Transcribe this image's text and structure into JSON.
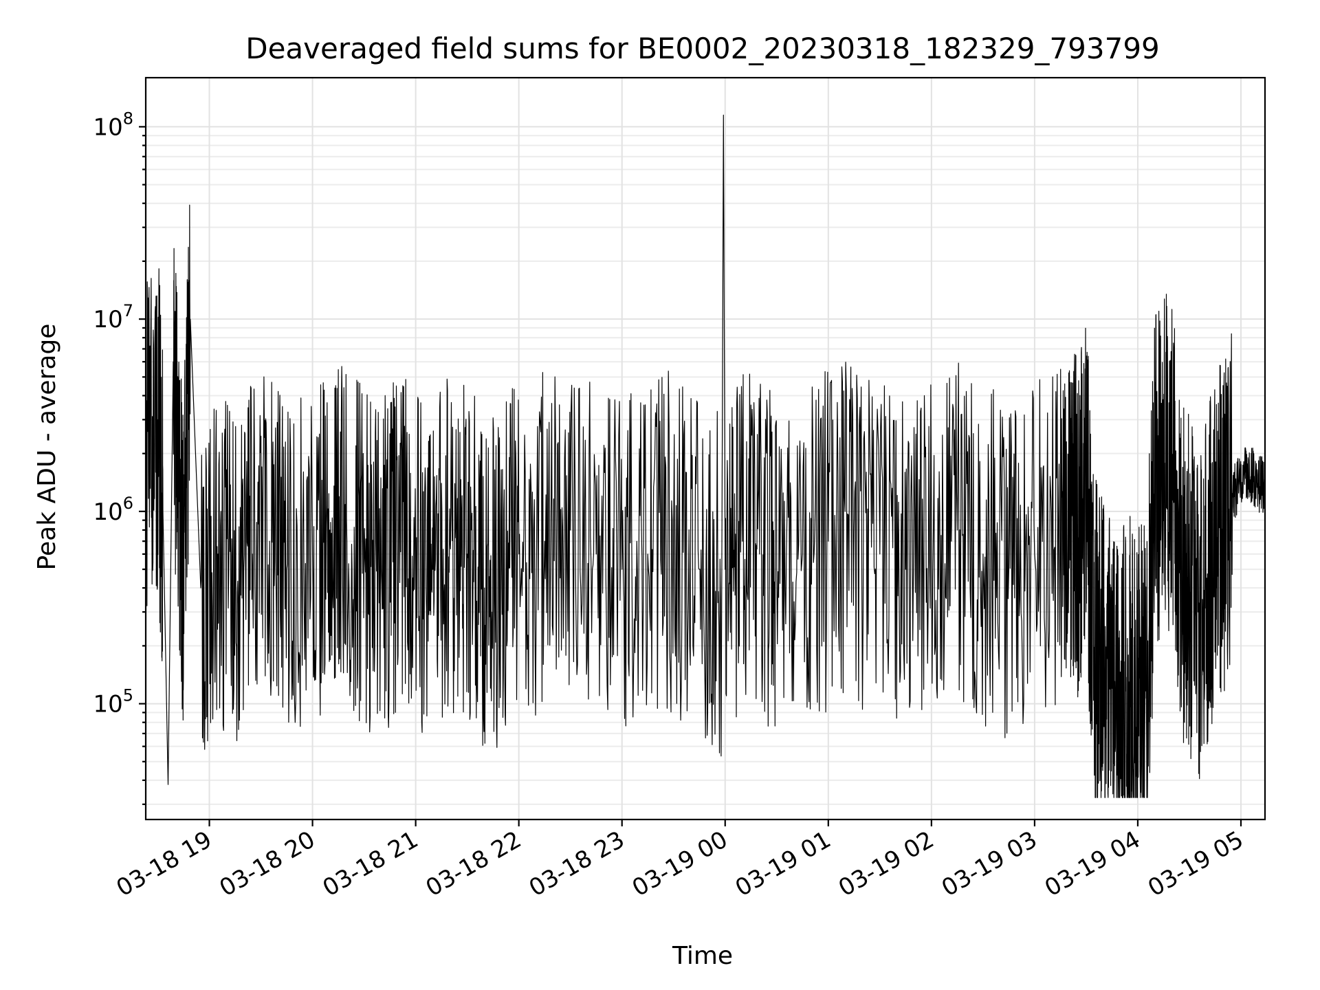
{
  "chart_data": {
    "type": "line",
    "title": "Deaveraged field sums for BE0002_20230318_182329_793799",
    "xlabel": "Time",
    "ylabel": "Peak ADU - average",
    "yscale": "log",
    "grid": true,
    "xlim": [
      "2023-03-18T18:23",
      "2023-03-19T05:14"
    ],
    "ylim": [
      25000,
      180000000
    ],
    "x_ticks": [
      {
        "label": "03-18 19",
        "t": "2023-03-18T19:00"
      },
      {
        "label": "03-18 20",
        "t": "2023-03-18T20:00"
      },
      {
        "label": "03-18 21",
        "t": "2023-03-18T21:00"
      },
      {
        "label": "03-18 22",
        "t": "2023-03-18T22:00"
      },
      {
        "label": "03-18 23",
        "t": "2023-03-18T23:00"
      },
      {
        "label": "03-19 00",
        "t": "2023-03-19T00:00"
      },
      {
        "label": "03-19 01",
        "t": "2023-03-19T01:00"
      },
      {
        "label": "03-19 02",
        "t": "2023-03-19T02:00"
      },
      {
        "label": "03-19 03",
        "t": "2023-03-19T03:00"
      },
      {
        "label": "03-19 04",
        "t": "2023-03-19T04:00"
      },
      {
        "label": "03-19 05",
        "t": "2023-03-19T05:00"
      }
    ],
    "y_ticks": [
      {
        "base": "10",
        "exp": "5",
        "value": 100000
      },
      {
        "base": "10",
        "exp": "6",
        "value": 1000000
      },
      {
        "base": "10",
        "exp": "7",
        "value": 10000000
      },
      {
        "base": "10",
        "exp": "8",
        "value": 100000000
      }
    ],
    "series_color": "#000000",
    "series": [
      {
        "x": [
          "2023-03-18T18:23",
          "2023-03-18T18:30",
          "2023-03-18T18:33",
          "2023-03-18T18:36",
          "2023-03-18T18:39",
          "2023-03-18T18:42",
          "2023-03-18T18:45",
          "2023-03-18T18:49",
          "2023-03-18T18:55",
          "2023-03-18T19:05",
          "2023-03-18T19:15",
          "2023-03-18T19:25",
          "2023-03-18T19:35",
          "2023-03-18T19:45",
          "2023-03-18T20:00",
          "2023-03-18T20:10",
          "2023-03-18T20:20",
          "2023-03-18T20:30",
          "2023-03-18T20:40",
          "2023-03-18T20:50",
          "2023-03-18T21:00",
          "2023-03-18T21:10",
          "2023-03-18T21:20",
          "2023-03-18T21:30",
          "2023-03-18T21:40",
          "2023-03-18T21:50",
          "2023-03-18T22:00",
          "2023-03-18T22:15",
          "2023-03-18T22:30",
          "2023-03-18T22:45",
          "2023-03-18T23:00",
          "2023-03-18T23:15",
          "2023-03-18T23:30",
          "2023-03-18T23:45",
          "2023-03-18T23:58",
          "2023-03-18T23:59",
          "2023-03-19T00:00",
          "2023-03-19T00:10",
          "2023-03-19T00:20",
          "2023-03-19T00:30",
          "2023-03-19T00:45",
          "2023-03-19T01:00",
          "2023-03-19T01:15",
          "2023-03-19T01:30",
          "2023-03-19T01:45",
          "2023-03-19T02:00",
          "2023-03-19T02:15",
          "2023-03-19T02:30",
          "2023-03-19T02:45",
          "2023-03-19T03:00",
          "2023-03-19T03:15",
          "2023-03-19T03:20",
          "2023-03-19T03:25",
          "2023-03-19T03:30",
          "2023-03-19T03:35",
          "2023-03-19T03:40",
          "2023-03-19T03:45",
          "2023-03-19T03:50",
          "2023-03-19T03:55",
          "2023-03-19T04:00",
          "2023-03-19T04:05",
          "2023-03-19T04:10",
          "2023-03-19T04:15",
          "2023-03-19T04:20",
          "2023-03-19T04:25",
          "2023-03-19T04:30",
          "2023-03-19T04:35",
          "2023-03-19T04:40",
          "2023-03-19T04:45",
          "2023-03-19T04:50",
          "2023-03-19T04:55",
          "2023-03-19T05:00",
          "2023-03-19T05:05",
          "2023-03-19T05:10",
          "2023-03-19T05:14"
        ],
        "y": [
          2000000,
          3000000,
          1000000,
          38000,
          6000000,
          1500000,
          500000,
          9700000,
          400000,
          600000,
          500000,
          600000,
          700000,
          500000,
          600000,
          800000,
          700000,
          600000,
          500000,
          700000,
          600000,
          500000,
          700000,
          600000,
          400000,
          500000,
          600000,
          700000,
          800000,
          600000,
          500000,
          600000,
          700000,
          500000,
          400000,
          115000000,
          500000,
          700000,
          600000,
          500000,
          600000,
          700000,
          800000,
          600000,
          500000,
          700000,
          800000,
          600000,
          500000,
          600000,
          700000,
          1000000,
          800000,
          1400000,
          200000,
          150000,
          120000,
          100000,
          130000,
          120000,
          110000,
          1400000,
          2000000,
          1700000,
          500000,
          400000,
          300000,
          450000,
          600000,
          900000,
          1200000,
          1500000,
          1600000,
          1400000,
          1350000
        ]
      }
    ]
  }
}
